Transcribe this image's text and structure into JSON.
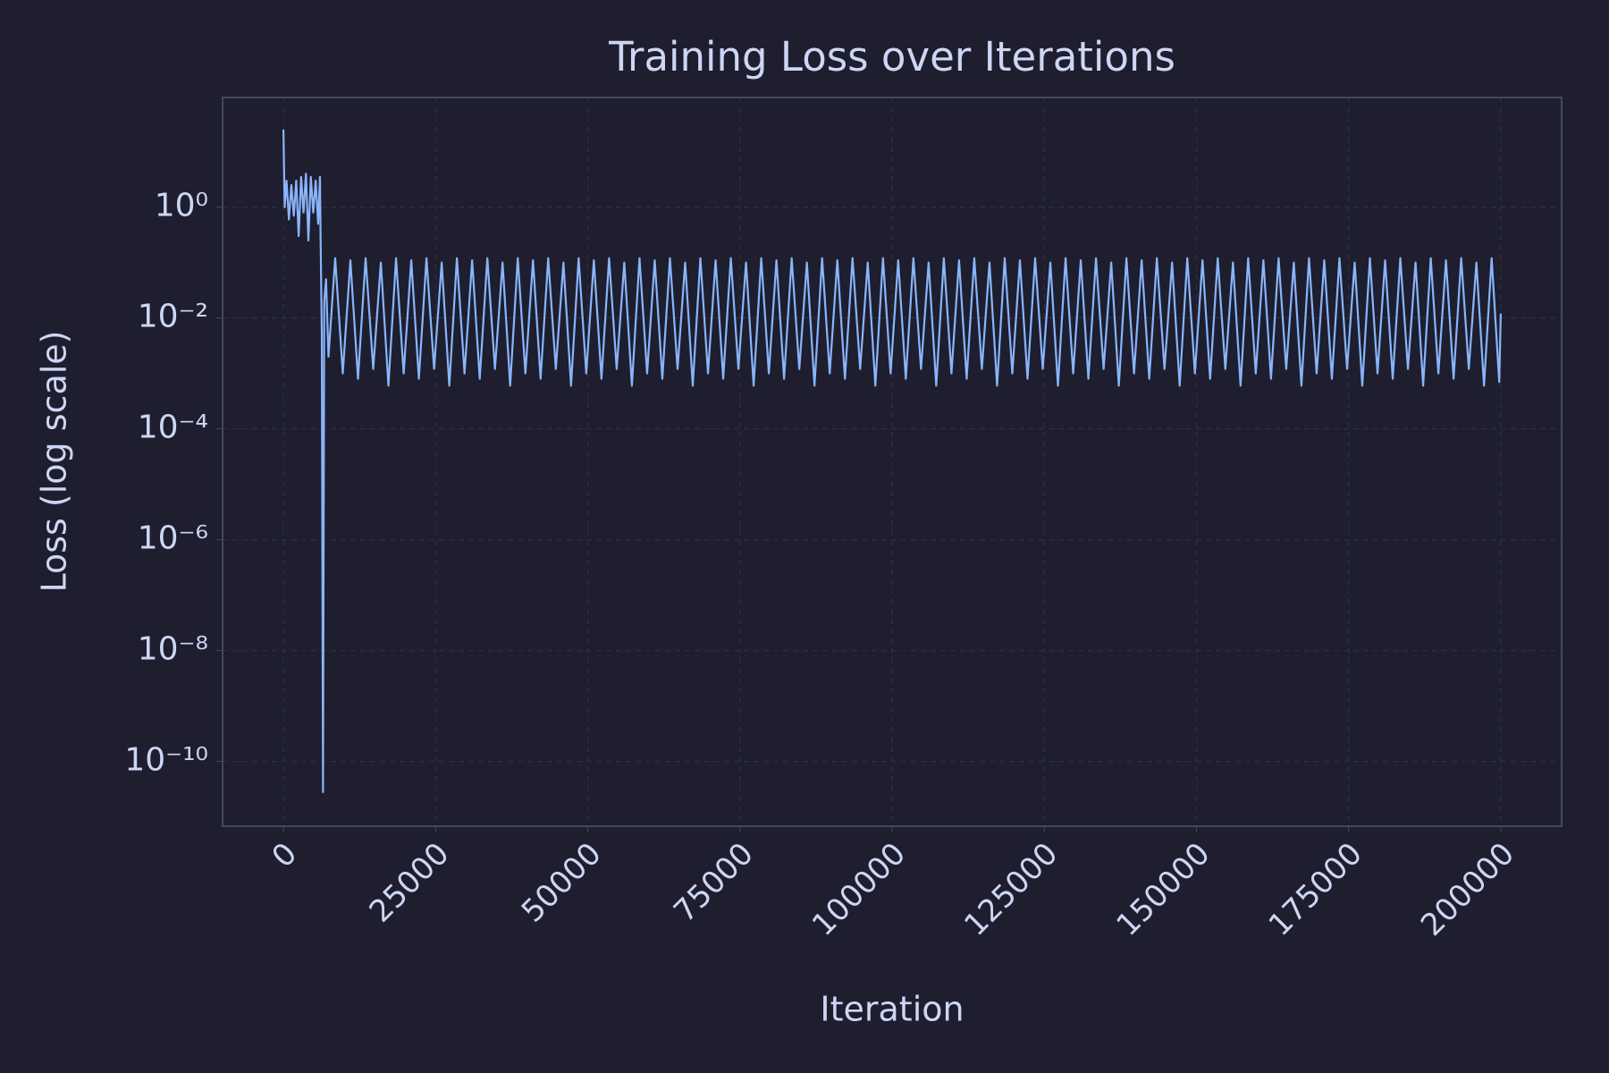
{
  "chart_data": {
    "type": "line",
    "title": "Training Loss over Iterations",
    "xlabel": "Iteration",
    "ylabel": "Loss (log scale)",
    "yscale": "log",
    "grid": true,
    "color": "#89b4fa",
    "xlim": [
      -10000,
      210000
    ],
    "xticks": [
      0,
      25000,
      50000,
      75000,
      100000,
      125000,
      150000,
      175000,
      200000
    ],
    "ylim": [
      6.8e-12,
      95
    ],
    "yticks": [
      {
        "value": 1,
        "label": "10⁰"
      },
      {
        "value": 0.01,
        "label": "10⁻²"
      },
      {
        "value": 0.0001,
        "label": "10⁻⁴"
      },
      {
        "value": 1e-06,
        "label": "10⁻⁶"
      },
      {
        "value": 1e-08,
        "label": "10⁻⁸"
      },
      {
        "value": 1e-10,
        "label": "10⁻¹⁰"
      }
    ],
    "x": [
      0,
      200,
      500,
      900,
      1300,
      1700,
      2100,
      2500,
      2900,
      3300,
      3700,
      4100,
      4500,
      4900,
      5300,
      5700,
      6000,
      6100,
      6300,
      6500,
      6700,
      7000,
      7400,
      8500,
      9750,
      11000,
      12250,
      13500,
      14750,
      16000,
      17250,
      18500,
      19750,
      21000,
      22250,
      23500,
      24750,
      26000,
      27250,
      28500,
      29750,
      31000,
      32250,
      33500,
      34750,
      36000,
      37250,
      38500,
      39750,
      41000,
      42250,
      43500,
      44750,
      46000,
      47250,
      48500,
      49750,
      51000,
      52250,
      53500,
      54750,
      56000,
      57250,
      58500,
      59750,
      61000,
      62250,
      63500,
      64750,
      66000,
      67250,
      68500,
      69750,
      71000,
      72250,
      73500,
      74750,
      76000,
      77250,
      78500,
      79750,
      81000,
      82250,
      83500,
      84750,
      86000,
      87250,
      88500,
      89750,
      91000,
      92250,
      93500,
      94750,
      96000,
      97250,
      98500,
      99750,
      101000,
      102250,
      103500,
      104750,
      106000,
      107250,
      108500,
      109750,
      111000,
      112250,
      113500,
      114750,
      116000,
      117250,
      118500,
      119750,
      121000,
      122250,
      123500,
      124750,
      126000,
      127250,
      128500,
      129750,
      131000,
      132250,
      133500,
      134750,
      136000,
      137250,
      138500,
      139750,
      141000,
      142250,
      143500,
      144750,
      146000,
      147250,
      148500,
      149750,
      151000,
      152250,
      153500,
      154750,
      156000,
      157250,
      158500,
      159750,
      161000,
      162250,
      163500,
      164750,
      166000,
      167250,
      168500,
      169750,
      171000,
      172250,
      173500,
      174750,
      176000,
      177250,
      178500,
      179750,
      181000,
      182250,
      183500,
      184750,
      186000,
      187250,
      188500,
      189750,
      191000,
      192250,
      193500,
      194750,
      196000,
      197250,
      198500,
      199750,
      200000
    ],
    "series": [
      {
        "color": "#89b4fa",
        "values": [
          25,
          1,
          3,
          0.6,
          2.5,
          0.7,
          3,
          0.3,
          3.5,
          0.8,
          4,
          0.25,
          3.5,
          0.8,
          3,
          0.5,
          3.5,
          0.3,
          0.005,
          2.8e-11,
          0.02,
          0.05,
          0.002,
          0.12,
          0.001,
          0.11,
          0.0008,
          0.12,
          0.0012,
          0.1,
          0.0006,
          0.12,
          0.001,
          0.11,
          0.0008,
          0.12,
          0.0012,
          0.1,
          0.0006,
          0.12,
          0.001,
          0.11,
          0.0008,
          0.12,
          0.0012,
          0.1,
          0.0006,
          0.12,
          0.001,
          0.11,
          0.0008,
          0.12,
          0.0012,
          0.1,
          0.0006,
          0.12,
          0.001,
          0.11,
          0.0008,
          0.12,
          0.0012,
          0.1,
          0.0006,
          0.12,
          0.001,
          0.11,
          0.0008,
          0.12,
          0.0012,
          0.1,
          0.0006,
          0.12,
          0.001,
          0.11,
          0.0008,
          0.12,
          0.0012,
          0.1,
          0.0006,
          0.12,
          0.001,
          0.11,
          0.0008,
          0.12,
          0.0012,
          0.1,
          0.0006,
          0.12,
          0.001,
          0.11,
          0.0008,
          0.12,
          0.0012,
          0.1,
          0.0006,
          0.12,
          0.001,
          0.11,
          0.0008,
          0.12,
          0.0012,
          0.1,
          0.0006,
          0.12,
          0.001,
          0.11,
          0.0008,
          0.12,
          0.0012,
          0.1,
          0.0006,
          0.12,
          0.001,
          0.11,
          0.0008,
          0.12,
          0.0012,
          0.1,
          0.0006,
          0.12,
          0.001,
          0.11,
          0.0008,
          0.12,
          0.0012,
          0.1,
          0.0006,
          0.12,
          0.001,
          0.11,
          0.0008,
          0.12,
          0.0012,
          0.1,
          0.0006,
          0.12,
          0.001,
          0.11,
          0.0008,
          0.12,
          0.0012,
          0.1,
          0.0006,
          0.12,
          0.001,
          0.11,
          0.0008,
          0.12,
          0.0012,
          0.1,
          0.0006,
          0.12,
          0.001,
          0.11,
          0.0008,
          0.12,
          0.0012,
          0.1,
          0.0006,
          0.12,
          0.001,
          0.11,
          0.0008,
          0.12,
          0.0012,
          0.1,
          0.0006,
          0.12,
          0.001,
          0.11,
          0.0008,
          0.12,
          0.0012,
          0.1,
          0.0006,
          0.12,
          0.0007,
          0.012
        ]
      }
    ]
  }
}
